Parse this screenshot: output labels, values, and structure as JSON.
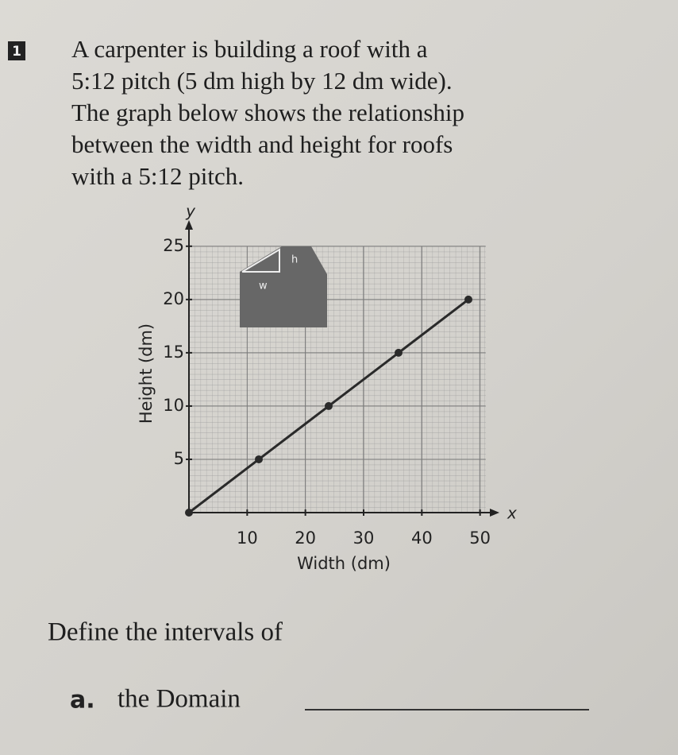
{
  "problem": {
    "number": "1",
    "lines": [
      "A carpenter is building a roof with a",
      "5:12 pitch (5 dm high by 12 dm wide).",
      "The graph below shows the relationship",
      "between the width and height for roofs",
      "with a 5:12 pitch."
    ]
  },
  "inset": {
    "height": "h",
    "width": "w"
  },
  "chart_data": {
    "type": "line",
    "x_axis_name": "x",
    "y_axis_name": "y",
    "xlabel": "Width (dm)",
    "ylabel": "Height (dm)",
    "x": [
      0,
      12,
      24,
      36,
      48
    ],
    "series": [
      {
        "values": [
          0,
          5,
          10,
          15,
          20
        ],
        "color": "#2a2a2a"
      }
    ],
    "xlim": [
      0,
      52.5
    ],
    "ylim": [
      0,
      27
    ],
    "xticks": [
      10,
      20,
      30,
      40,
      50
    ],
    "yticks": [
      5,
      10,
      15,
      20,
      25
    ],
    "grid": true
  },
  "question": {
    "text": "Define the intervals of",
    "part_a": {
      "letter": "a.",
      "text": "the Domain"
    }
  }
}
